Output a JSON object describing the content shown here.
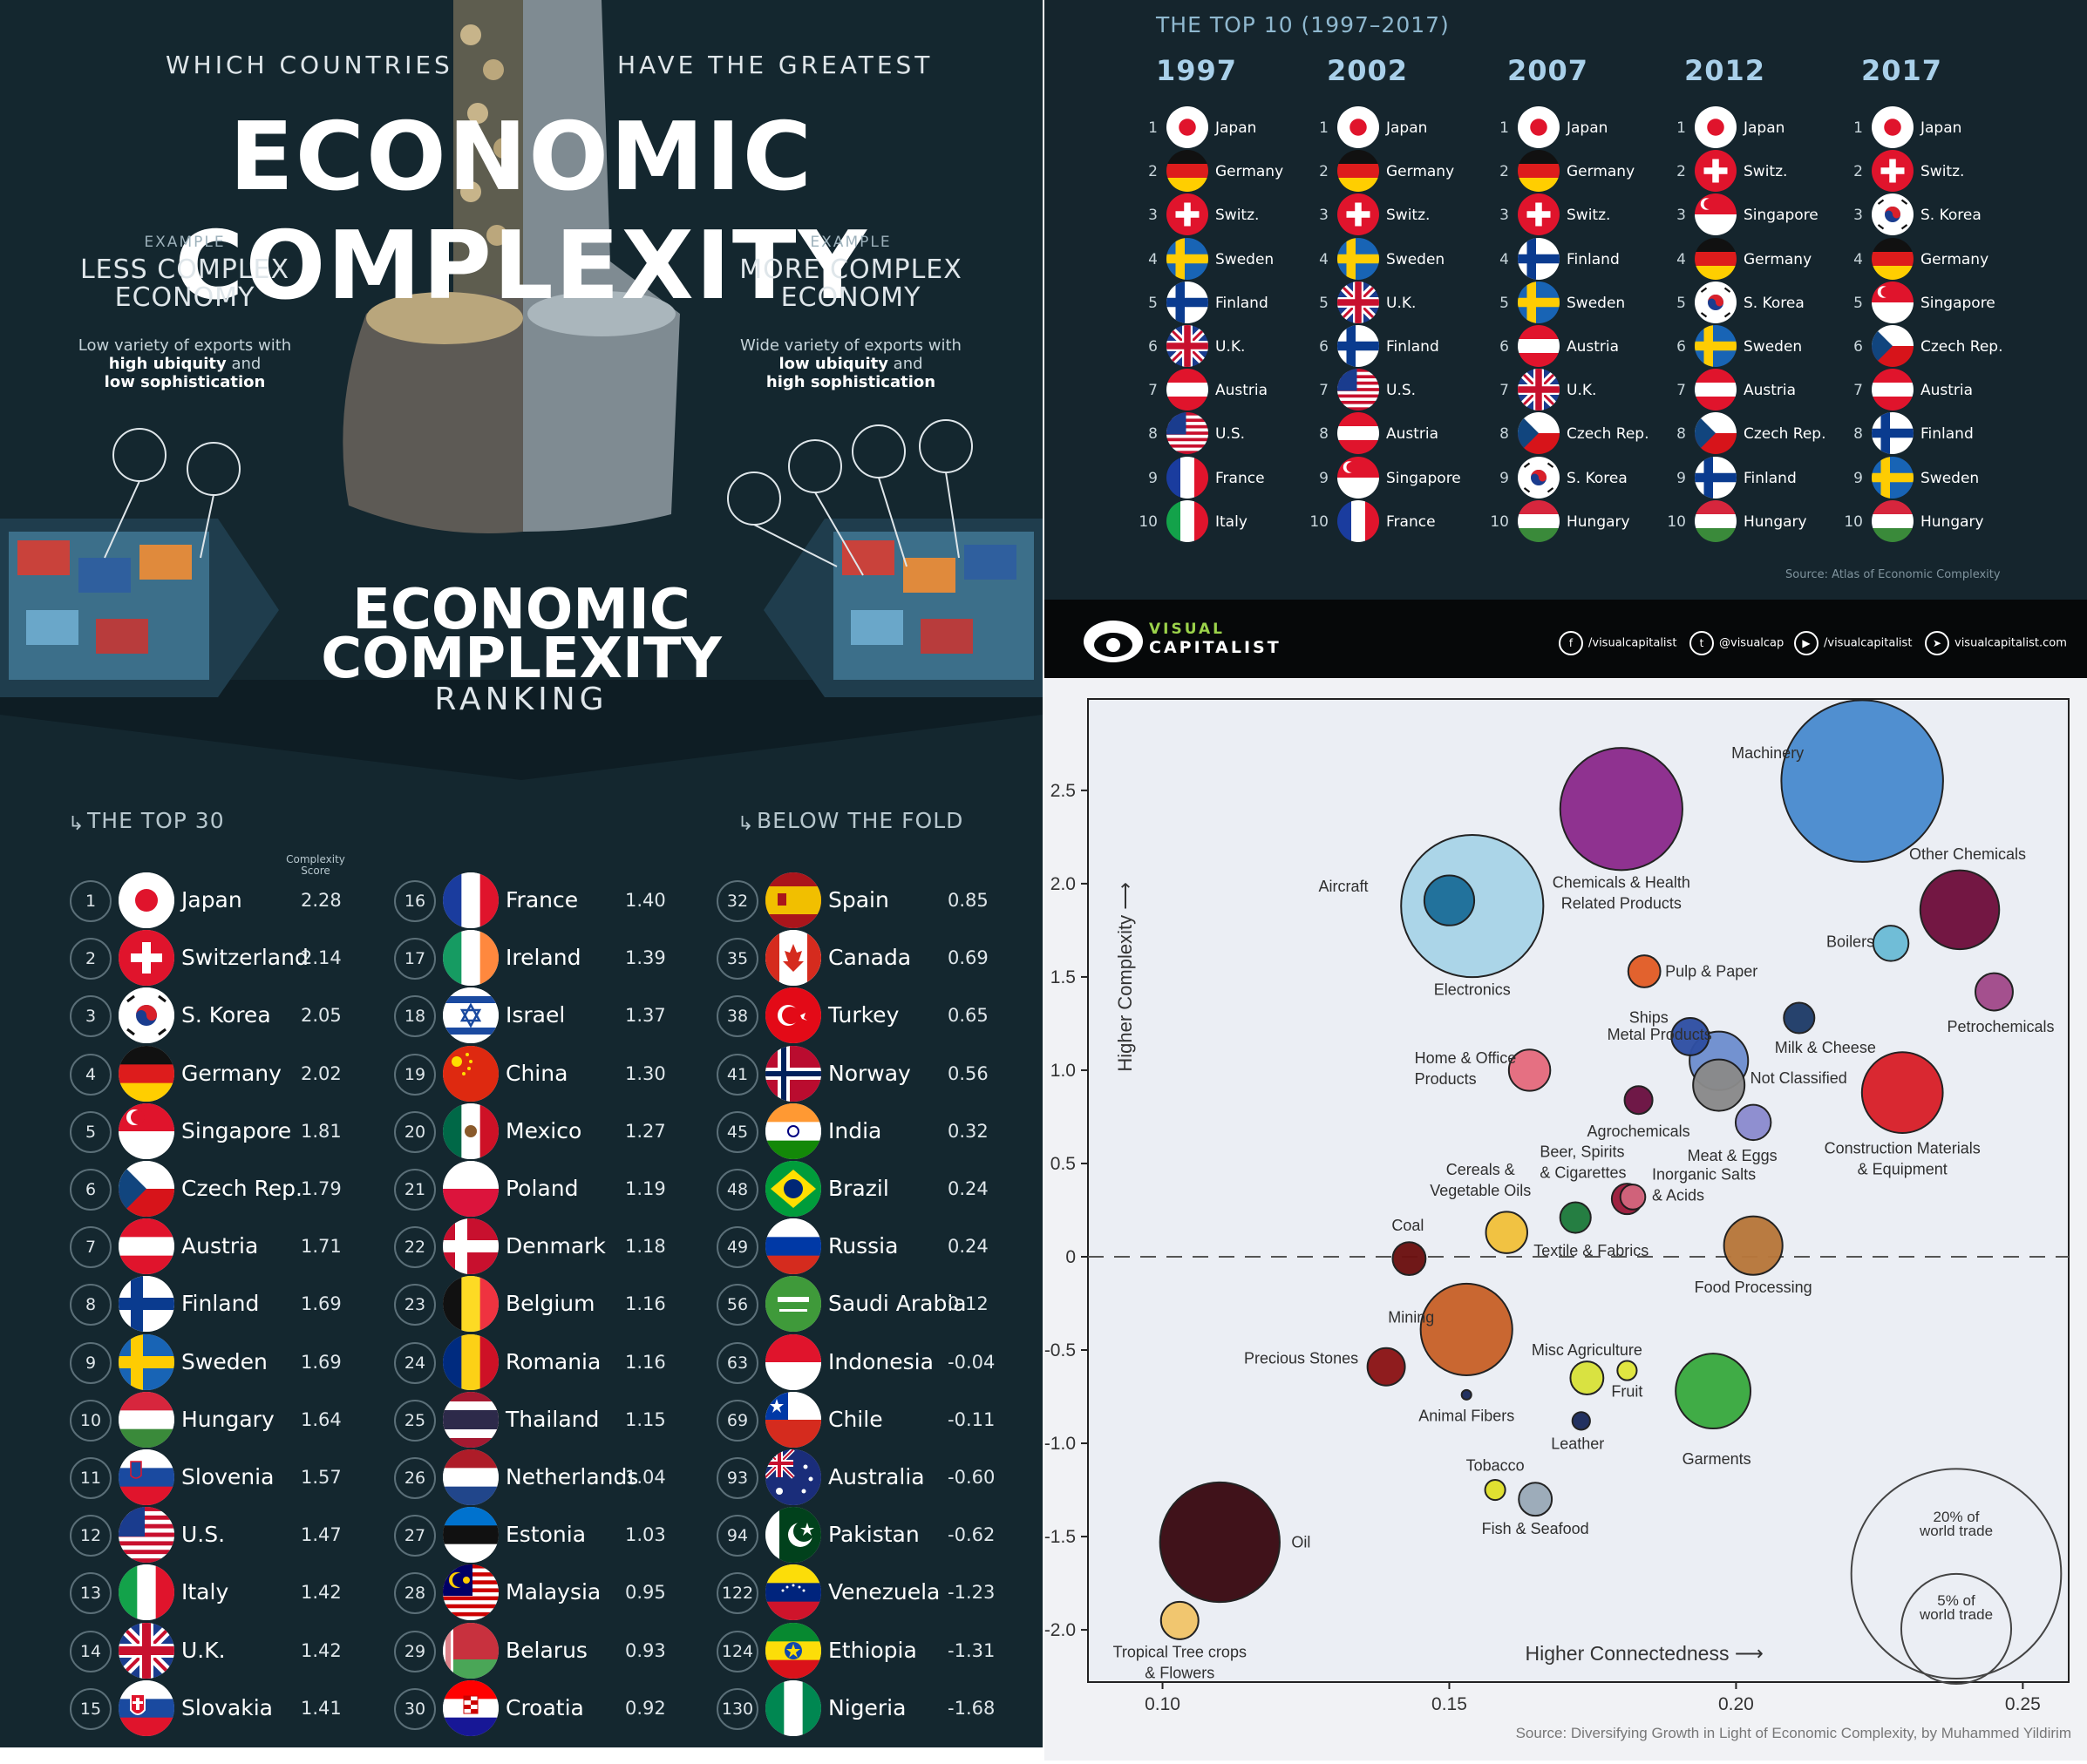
{
  "header": {
    "line1_left": "WHICH COUNTRIES",
    "line1_right": "HAVE THE GREATEST",
    "title": "ECONOMIC COMPLEXITY"
  },
  "examples": {
    "less": {
      "tag": "EXAMPLE",
      "title_line1": "LESS COMPLEX",
      "title_line2": "ECONOMY",
      "desc_line1": "Low variety of exports with",
      "desc_bold1": "high ubiquity",
      "desc_mid": " and",
      "desc_bold2": "low sophistication"
    },
    "more": {
      "tag": "EXAMPLE",
      "title_line1": "MORE COMPLEX",
      "title_line2": "ECONOMY",
      "desc_line1": "Wide variety of exports with",
      "desc_bold1": "low ubiquity",
      "desc_mid": " and",
      "desc_bold2": "high sophistication"
    }
  },
  "ranking": {
    "title_line1": "ECONOMIC",
    "title_line2": "COMPLEXITY",
    "subtitle": "RANKING"
  },
  "top30": {
    "label": "THE TOP 30",
    "score_header_line1": "Complexity",
    "score_header_line2": "Score",
    "rows": [
      {
        "rank": "1",
        "country": "Japan",
        "score": "2.28",
        "flag": "japan"
      },
      {
        "rank": "2",
        "country": "Switzerland",
        "score": "2.14",
        "flag": "switzerland"
      },
      {
        "rank": "3",
        "country": "S. Korea",
        "score": "2.05",
        "flag": "korea"
      },
      {
        "rank": "4",
        "country": "Germany",
        "score": "2.02",
        "flag": "germany"
      },
      {
        "rank": "5",
        "country": "Singapore",
        "score": "1.81",
        "flag": "singapore"
      },
      {
        "rank": "6",
        "country": "Czech Rep.",
        "score": "1.79",
        "flag": "czech"
      },
      {
        "rank": "7",
        "country": "Austria",
        "score": "1.71",
        "flag": "austria"
      },
      {
        "rank": "8",
        "country": "Finland",
        "score": "1.69",
        "flag": "finland"
      },
      {
        "rank": "9",
        "country": "Sweden",
        "score": "1.69",
        "flag": "sweden"
      },
      {
        "rank": "10",
        "country": "Hungary",
        "score": "1.64",
        "flag": "hungary"
      },
      {
        "rank": "11",
        "country": "Slovenia",
        "score": "1.57",
        "flag": "slovenia"
      },
      {
        "rank": "12",
        "country": "U.S.",
        "score": "1.47",
        "flag": "us"
      },
      {
        "rank": "13",
        "country": "Italy",
        "score": "1.42",
        "flag": "italy"
      },
      {
        "rank": "14",
        "country": "U.K.",
        "score": "1.42",
        "flag": "uk"
      },
      {
        "rank": "15",
        "country": "Slovakia",
        "score": "1.41",
        "flag": "slovakia"
      },
      {
        "rank": "16",
        "country": "France",
        "score": "1.40",
        "flag": "france"
      },
      {
        "rank": "17",
        "country": "Ireland",
        "score": "1.39",
        "flag": "ireland"
      },
      {
        "rank": "18",
        "country": "Israel",
        "score": "1.37",
        "flag": "israel"
      },
      {
        "rank": "19",
        "country": "China",
        "score": "1.30",
        "flag": "china"
      },
      {
        "rank": "20",
        "country": "Mexico",
        "score": "1.27",
        "flag": "mexico"
      },
      {
        "rank": "21",
        "country": "Poland",
        "score": "1.19",
        "flag": "poland"
      },
      {
        "rank": "22",
        "country": "Denmark",
        "score": "1.18",
        "flag": "denmark"
      },
      {
        "rank": "23",
        "country": "Belgium",
        "score": "1.16",
        "flag": "belgium"
      },
      {
        "rank": "24",
        "country": "Romania",
        "score": "1.16",
        "flag": "romania"
      },
      {
        "rank": "25",
        "country": "Thailand",
        "score": "1.15",
        "flag": "thailand"
      },
      {
        "rank": "26",
        "country": "Netherlands",
        "score": "1.04",
        "flag": "netherlands"
      },
      {
        "rank": "27",
        "country": "Estonia",
        "score": "1.03",
        "flag": "estonia"
      },
      {
        "rank": "28",
        "country": "Malaysia",
        "score": "0.95",
        "flag": "malaysia"
      },
      {
        "rank": "29",
        "country": "Belarus",
        "score": "0.93",
        "flag": "belarus"
      },
      {
        "rank": "30",
        "country": "Croatia",
        "score": "0.92",
        "flag": "croatia"
      }
    ]
  },
  "below_fold": {
    "label": "BELOW THE FOLD",
    "rows": [
      {
        "rank": "32",
        "country": "Spain",
        "score": "0.85",
        "flag": "spain"
      },
      {
        "rank": "35",
        "country": "Canada",
        "score": "0.69",
        "flag": "canada"
      },
      {
        "rank": "38",
        "country": "Turkey",
        "score": "0.65",
        "flag": "turkey"
      },
      {
        "rank": "41",
        "country": "Norway",
        "score": "0.56",
        "flag": "norway"
      },
      {
        "rank": "45",
        "country": "India",
        "score": "0.32",
        "flag": "india"
      },
      {
        "rank": "48",
        "country": "Brazil",
        "score": "0.24",
        "flag": "brazil"
      },
      {
        "rank": "49",
        "country": "Russia",
        "score": "0.24",
        "flag": "russia"
      },
      {
        "rank": "56",
        "country": "Saudi Arabia",
        "score": "0.12",
        "flag": "saudi"
      },
      {
        "rank": "63",
        "country": "Indonesia",
        "score": "-0.04",
        "flag": "indonesia"
      },
      {
        "rank": "69",
        "country": "Chile",
        "score": "-0.11",
        "flag": "chile"
      },
      {
        "rank": "93",
        "country": "Australia",
        "score": "-0.60",
        "flag": "australia"
      },
      {
        "rank": "94",
        "country": "Pakistan",
        "score": "-0.62",
        "flag": "pakistan"
      },
      {
        "rank": "122",
        "country": "Venezuela",
        "score": "-1.23",
        "flag": "venezuela"
      },
      {
        "rank": "124",
        "country": "Ethiopia",
        "score": "-1.31",
        "flag": "ethiopia"
      },
      {
        "rank": "130",
        "country": "Nigeria",
        "score": "-1.68",
        "flag": "nigeria"
      }
    ]
  },
  "top10": {
    "title": "THE TOP 10 (1997–2017)",
    "source": "Source:  Atlas of Economic Complexity",
    "years": [
      {
        "year": "1997",
        "items": [
          {
            "n": "1",
            "c": "Japan",
            "flag": "japan"
          },
          {
            "n": "2",
            "c": "Germany",
            "flag": "germany"
          },
          {
            "n": "3",
            "c": "Switz.",
            "flag": "switzerland"
          },
          {
            "n": "4",
            "c": "Sweden",
            "flag": "sweden"
          },
          {
            "n": "5",
            "c": "Finland",
            "flag": "finland"
          },
          {
            "n": "6",
            "c": "U.K.",
            "flag": "uk"
          },
          {
            "n": "7",
            "c": "Austria",
            "flag": "austria"
          },
          {
            "n": "8",
            "c": "U.S.",
            "flag": "us"
          },
          {
            "n": "9",
            "c": "France",
            "flag": "france"
          },
          {
            "n": "10",
            "c": "Italy",
            "flag": "italy"
          }
        ]
      },
      {
        "year": "2002",
        "items": [
          {
            "n": "1",
            "c": "Japan",
            "flag": "japan"
          },
          {
            "n": "2",
            "c": "Germany",
            "flag": "germany"
          },
          {
            "n": "3",
            "c": "Switz.",
            "flag": "switzerland"
          },
          {
            "n": "4",
            "c": "Sweden",
            "flag": "sweden"
          },
          {
            "n": "5",
            "c": "U.K.",
            "flag": "uk"
          },
          {
            "n": "6",
            "c": "Finland",
            "flag": "finland"
          },
          {
            "n": "7",
            "c": "U.S.",
            "flag": "us"
          },
          {
            "n": "8",
            "c": "Austria",
            "flag": "austria"
          },
          {
            "n": "9",
            "c": "Singapore",
            "flag": "singapore"
          },
          {
            "n": "10",
            "c": "France",
            "flag": "france"
          }
        ]
      },
      {
        "year": "2007",
        "items": [
          {
            "n": "1",
            "c": "Japan",
            "flag": "japan"
          },
          {
            "n": "2",
            "c": "Germany",
            "flag": "germany"
          },
          {
            "n": "3",
            "c": "Switz.",
            "flag": "switzerland"
          },
          {
            "n": "4",
            "c": "Finland",
            "flag": "finland"
          },
          {
            "n": "5",
            "c": "Sweden",
            "flag": "sweden"
          },
          {
            "n": "6",
            "c": "Austria",
            "flag": "austria"
          },
          {
            "n": "7",
            "c": "U.K.",
            "flag": "uk"
          },
          {
            "n": "8",
            "c": "Czech Rep.",
            "flag": "czech"
          },
          {
            "n": "9",
            "c": "S. Korea",
            "flag": "korea"
          },
          {
            "n": "10",
            "c": "Hungary",
            "flag": "hungary"
          }
        ]
      },
      {
        "year": "2012",
        "items": [
          {
            "n": "1",
            "c": "Japan",
            "flag": "japan"
          },
          {
            "n": "2",
            "c": "Switz.",
            "flag": "switzerland"
          },
          {
            "n": "3",
            "c": "Singapore",
            "flag": "singapore"
          },
          {
            "n": "4",
            "c": "Germany",
            "flag": "germany"
          },
          {
            "n": "5",
            "c": "S. Korea",
            "flag": "korea"
          },
          {
            "n": "6",
            "c": "Sweden",
            "flag": "sweden"
          },
          {
            "n": "7",
            "c": "Austria",
            "flag": "austria"
          },
          {
            "n": "8",
            "c": "Czech Rep.",
            "flag": "czech"
          },
          {
            "n": "9",
            "c": "Finland",
            "flag": "finland"
          },
          {
            "n": "10",
            "c": "Hungary",
            "flag": "hungary"
          }
        ]
      },
      {
        "year": "2017",
        "items": [
          {
            "n": "1",
            "c": "Japan",
            "flag": "japan"
          },
          {
            "n": "2",
            "c": "Switz.",
            "flag": "switzerland"
          },
          {
            "n": "3",
            "c": "S. Korea",
            "flag": "korea"
          },
          {
            "n": "4",
            "c": "Germany",
            "flag": "germany"
          },
          {
            "n": "5",
            "c": "Singapore",
            "flag": "singapore"
          },
          {
            "n": "6",
            "c": "Czech Rep.",
            "flag": "czech"
          },
          {
            "n": "7",
            "c": "Austria",
            "flag": "austria"
          },
          {
            "n": "8",
            "c": "Finland",
            "flag": "finland"
          },
          {
            "n": "9",
            "c": "Sweden",
            "flag": "sweden"
          },
          {
            "n": "10",
            "c": "Hungary",
            "flag": "hungary"
          }
        ]
      }
    ]
  },
  "brand": {
    "name_top": "VISUAL",
    "name_bottom": "CAPITALIST",
    "social": [
      {
        "icon": "facebook-icon",
        "glyph": "f",
        "text": "/visualcapitalist"
      },
      {
        "icon": "twitter-icon",
        "glyph": "t",
        "text": "@visualcap"
      },
      {
        "icon": "youtube-icon",
        "glyph": "▶",
        "text": "/visualcapitalist"
      },
      {
        "icon": "cursor-icon",
        "glyph": "➤",
        "text": "visualcapitalist.com"
      }
    ]
  },
  "chart_data": {
    "type": "scatter",
    "xlabel": "Higher Connectedness  ⟶",
    "ylabel": "Higher Complexity  ⟶",
    "xlim": [
      0.087,
      0.258
    ],
    "ylim": [
      -2.28,
      2.99
    ],
    "xticks": [
      0.1,
      0.15,
      0.2,
      0.25
    ],
    "xtick_labels": [
      "0.10",
      "0.15",
      "0.20",
      "0.25"
    ],
    "yticks": [
      2.5,
      2.0,
      1.5,
      1.0,
      0.5,
      0,
      -0.5,
      -1.0,
      -1.5,
      -2.0
    ],
    "ytick_labels": [
      "2.5",
      "2.0",
      "1.5",
      "1.0",
      "0.5",
      "0",
      "-0.5",
      "-1.0",
      "-1.5",
      "-2.0"
    ],
    "baseline": 0,
    "source": "Source:  Diversifying Growth in Light of Economic Complexity, by Muhammed Yildirim",
    "size_legend": {
      "large_label_line1": "20% of",
      "large_label_line2": "world trade",
      "small_label_line1": "5% of",
      "small_label_line2": "world trade"
    },
    "points": [
      {
        "name": "Machinery",
        "x": 0.222,
        "y": 2.55,
        "size": 8.4,
        "color": "#4a8ccf"
      },
      {
        "name": "Chemicals & Health Related Products",
        "x": 0.18,
        "y": 2.4,
        "size": 4.8,
        "color": "#8c2b8c"
      },
      {
        "name": "Electronics",
        "x": 0.154,
        "y": 1.88,
        "size": 6.5,
        "color": "#a9d4e8"
      },
      {
        "name": "Aircraft",
        "x": 0.15,
        "y": 1.91,
        "size": 0.8,
        "color": "#1d6e99"
      },
      {
        "name": "Other Chemicals",
        "x": 0.239,
        "y": 1.86,
        "size": 2.0,
        "color": "#6f0f3c"
      },
      {
        "name": "Boilers",
        "x": 0.227,
        "y": 1.68,
        "size": 0.4,
        "color": "#6bbcd6"
      },
      {
        "name": "Pulp & Paper",
        "x": 0.184,
        "y": 1.53,
        "size": 0.33,
        "color": "#e25d26"
      },
      {
        "name": "Petrochemicals",
        "x": 0.245,
        "y": 1.42,
        "size": 0.45,
        "color": "#a24a8a"
      },
      {
        "name": "Milk & Cheese",
        "x": 0.211,
        "y": 1.28,
        "size": 0.3,
        "color": "#1e3c68"
      },
      {
        "name": "Metal Products",
        "x": 0.197,
        "y": 1.05,
        "size": 1.1,
        "color": "#6f8fcf"
      },
      {
        "name": "Ships",
        "x": 0.192,
        "y": 1.18,
        "size": 0.45,
        "color": "#2f4fa3"
      },
      {
        "name": "Home & Office Products",
        "x": 0.164,
        "y": 1.0,
        "size": 0.55,
        "color": "#e56b7e"
      },
      {
        "name": "Not Classified",
        "x": 0.197,
        "y": 0.92,
        "size": 0.85,
        "color": "#8a8a8a"
      },
      {
        "name": "Construction Materials & Equipment",
        "x": 0.229,
        "y": 0.88,
        "size": 2.1,
        "color": "#d9202a"
      },
      {
        "name": "Meat & Eggs",
        "x": 0.203,
        "y": 0.72,
        "size": 0.4,
        "color": "#8c8ccf"
      },
      {
        "name": "Agrochemicals",
        "x": 0.183,
        "y": 0.84,
        "size": 0.25,
        "color": "#6a1040"
      },
      {
        "name": "Beer, Spirits & Cigarettes",
        "x": 0.181,
        "y": 0.31,
        "size": 0.3,
        "color": "#9b1a3a"
      },
      {
        "name": "Inorganic Salts & Acids",
        "x": 0.182,
        "y": 0.32,
        "size": 0.2,
        "color": "#d3657d"
      },
      {
        "name": "Cereals & Vegetable Oils",
        "x": 0.16,
        "y": 0.13,
        "size": 0.55,
        "color": "#f2c13b"
      },
      {
        "name": "Textile & Fabrics",
        "x": 0.172,
        "y": 0.21,
        "size": 0.3,
        "color": "#1d7a3b"
      },
      {
        "name": "Coal",
        "x": 0.143,
        "y": -0.01,
        "size": 0.35,
        "color": "#6b1010"
      },
      {
        "name": "Food Processing",
        "x": 0.203,
        "y": 0.06,
        "size": 1.1,
        "color": "#b8773a"
      },
      {
        "name": "Mining",
        "x": 0.153,
        "y": -0.39,
        "size": 2.7,
        "color": "#c8622a"
      },
      {
        "name": "Precious Stones",
        "x": 0.139,
        "y": -0.59,
        "size": 0.45,
        "color": "#8c1416"
      },
      {
        "name": "Animal Fibers",
        "x": 0.153,
        "y": -0.74,
        "size": 0.03,
        "color": "#1a2a5a"
      },
      {
        "name": "Misc Agriculture",
        "x": 0.174,
        "y": -0.65,
        "size": 0.35,
        "color": "#d9e23a"
      },
      {
        "name": "Fruit",
        "x": 0.181,
        "y": -0.61,
        "size": 0.12,
        "color": "#e0e63a"
      },
      {
        "name": "Garments",
        "x": 0.196,
        "y": -0.72,
        "size": 1.8,
        "color": "#3aaa3f"
      },
      {
        "name": "Leather",
        "x": 0.173,
        "y": -0.88,
        "size": 0.1,
        "color": "#1a2a5a"
      },
      {
        "name": "Tobacco",
        "x": 0.158,
        "y": -1.25,
        "size": 0.13,
        "color": "#e0e02a"
      },
      {
        "name": "Fish & Seafood",
        "x": 0.165,
        "y": -1.3,
        "size": 0.35,
        "color": "#9aaab8"
      },
      {
        "name": "Oil",
        "x": 0.11,
        "y": -1.53,
        "size": 4.6,
        "color": "#3a0a12"
      },
      {
        "name": "Tropical Tree crops & Flowers",
        "x": 0.103,
        "y": -1.95,
        "size": 0.45,
        "color": "#f2c56a"
      }
    ]
  }
}
